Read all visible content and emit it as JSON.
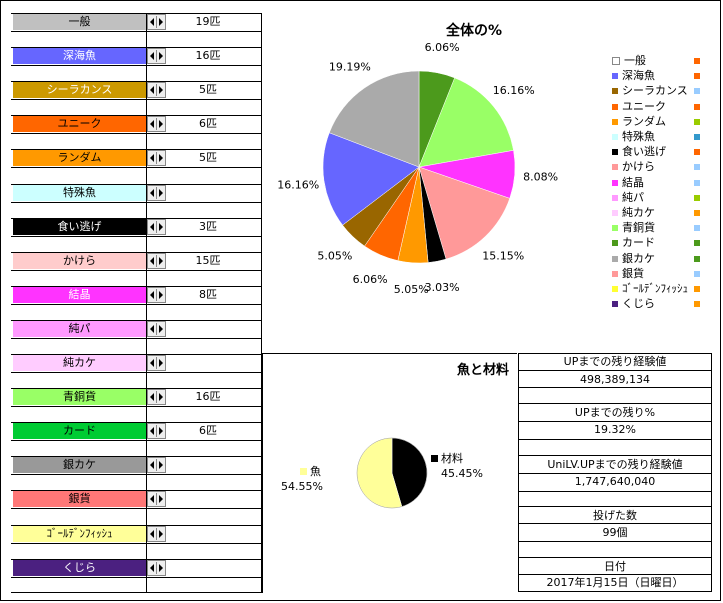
{
  "categories": [
    {
      "name": "一般",
      "count": "19匹",
      "bg": "#c0c0c0",
      "fg": "#000"
    },
    {
      "name": "深海魚",
      "count": "16匹",
      "bg": "#6666ff",
      "fg": "#fff"
    },
    {
      "name": "シーラカンス",
      "count": "5匹",
      "bg": "#cc9900",
      "fg": "#fff"
    },
    {
      "name": "ユニーク",
      "count": "6匹",
      "bg": "#ff6600",
      "fg": "#000"
    },
    {
      "name": "ランダム",
      "count": "5匹",
      "bg": "#ff9900",
      "fg": "#000"
    },
    {
      "name": "特殊魚",
      "count": "",
      "bg": "#ccffff",
      "fg": "#000"
    },
    {
      "name": "食い逃げ",
      "count": "3匹",
      "bg": "#000000",
      "fg": "#fff"
    },
    {
      "name": "かけら",
      "count": "15匹",
      "bg": "#ffcccc",
      "fg": "#000"
    },
    {
      "name": "結晶",
      "count": "8匹",
      "bg": "#ff33ff",
      "fg": "#fff"
    },
    {
      "name": "純パ",
      "count": "",
      "bg": "#ff99ff",
      "fg": "#000"
    },
    {
      "name": "純カケ",
      "count": "",
      "bg": "#ffccff",
      "fg": "#000"
    },
    {
      "name": "青銅貨",
      "count": "16匹",
      "bg": "#99ff66",
      "fg": "#000"
    },
    {
      "name": "カード",
      "count": "6匹",
      "bg": "#00cc33",
      "fg": "#000"
    },
    {
      "name": "銀カケ",
      "count": "",
      "bg": "#999999",
      "fg": "#000"
    },
    {
      "name": "銀貨",
      "count": "",
      "bg": "#ff7777",
      "fg": "#000"
    },
    {
      "name": "ｺﾞｰﾙﾃﾞﾝﾌｨｯｼｭ",
      "count": "",
      "bg": "#ffff99",
      "fg": "#000"
    },
    {
      "name": "くじら",
      "count": "",
      "bg": "#4b2080",
      "fg": "#fff"
    }
  ],
  "chart_data": [
    {
      "type": "pie",
      "title": "全体の%",
      "slices": [
        {
          "label": "カード",
          "value": 6.06,
          "color": "#4c9a1c",
          "text": "6.06%"
        },
        {
          "label": "青銅貨",
          "value": 16.16,
          "color": "#99ff66",
          "text": "16.16%"
        },
        {
          "label": "結晶",
          "value": 8.08,
          "color": "#ff33ff",
          "text": "8.08%"
        },
        {
          "label": "かけら",
          "value": 15.15,
          "color": "#ff9999",
          "text": "15.15%"
        },
        {
          "label": "食い逃げ",
          "value": 3.03,
          "color": "#000000",
          "text": "3.03%"
        },
        {
          "label": "ランダム",
          "value": 5.05,
          "color": "#ff9900",
          "text": "5.05%"
        },
        {
          "label": "ユニーク",
          "value": 6.06,
          "color": "#ff6600",
          "text": "6.06%"
        },
        {
          "label": "シーラカンス",
          "value": 5.05,
          "color": "#996600",
          "text": "5.05%"
        },
        {
          "label": "深海魚",
          "value": 16.16,
          "color": "#6666ff",
          "text": "16.16%"
        },
        {
          "label": "一般",
          "value": 19.19,
          "color": "#aaaaaa",
          "text": "19.19%"
        }
      ],
      "legend": [
        {
          "label": "一般",
          "color": "#ffffff",
          "mark": "#ff6600"
        },
        {
          "label": "深海魚",
          "color": "#6666ff",
          "mark": "#ff6600"
        },
        {
          "label": "シーラカンス",
          "color": "#996600",
          "mark": "#99ccff"
        },
        {
          "label": "ユニーク",
          "color": "#ff6600",
          "mark": "#ff6600"
        },
        {
          "label": "ランダム",
          "color": "#ff9900",
          "mark": "#99cc00"
        },
        {
          "label": "特殊魚",
          "color": "#ccffff",
          "mark": "#3399cc"
        },
        {
          "label": "食い逃げ",
          "color": "#000000",
          "mark": "#ff6600"
        },
        {
          "label": "かけら",
          "color": "#ff9999",
          "mark": "#99ccff"
        },
        {
          "label": "結晶",
          "color": "#ff33ff",
          "mark": "#99ccff"
        },
        {
          "label": "純パ",
          "color": "#ff99ff",
          "mark": "#99cc00"
        },
        {
          "label": "純カケ",
          "color": "#ffccff",
          "mark": "#ff9900"
        },
        {
          "label": "青銅貨",
          "color": "#99ff66",
          "mark": "#99ccff"
        },
        {
          "label": "カード",
          "color": "#4c9a1c",
          "mark": "#4c9a1c"
        },
        {
          "label": "銀カケ",
          "color": "#aaaaaa",
          "mark": "#4c9a1c"
        },
        {
          "label": "銀貨",
          "color": "#ff9999",
          "mark": "#99ccff"
        },
        {
          "label": "ｺﾞｰﾙﾃﾞﾝﾌｨｯｼｭ",
          "color": "#ffff33",
          "mark": "#ff9900"
        },
        {
          "label": "くじら",
          "color": "#4b2080",
          "mark": "#ff9900"
        }
      ]
    },
    {
      "type": "pie",
      "title": "魚と材料",
      "slices": [
        {
          "label": "材料",
          "value": 45.45,
          "color": "#000000",
          "text": "45.45%"
        },
        {
          "label": "魚",
          "value": 54.55,
          "color": "#ffff99",
          "text": "54.55%"
        }
      ]
    }
  ],
  "info": {
    "up_exp_label": "UPまでの残り経験値",
    "up_exp_value": "498,389,134",
    "up_pct_label": "UPまでの残り%",
    "up_pct_value": "19.32%",
    "unilv_label": "UniLV.UPまでの残り経験値",
    "unilv_value": "1,747,640,040",
    "thrown_label": "投げた数",
    "thrown_value": "99個",
    "date_label": "日付",
    "date_value": "2017年1月15日（日曜日）"
  }
}
